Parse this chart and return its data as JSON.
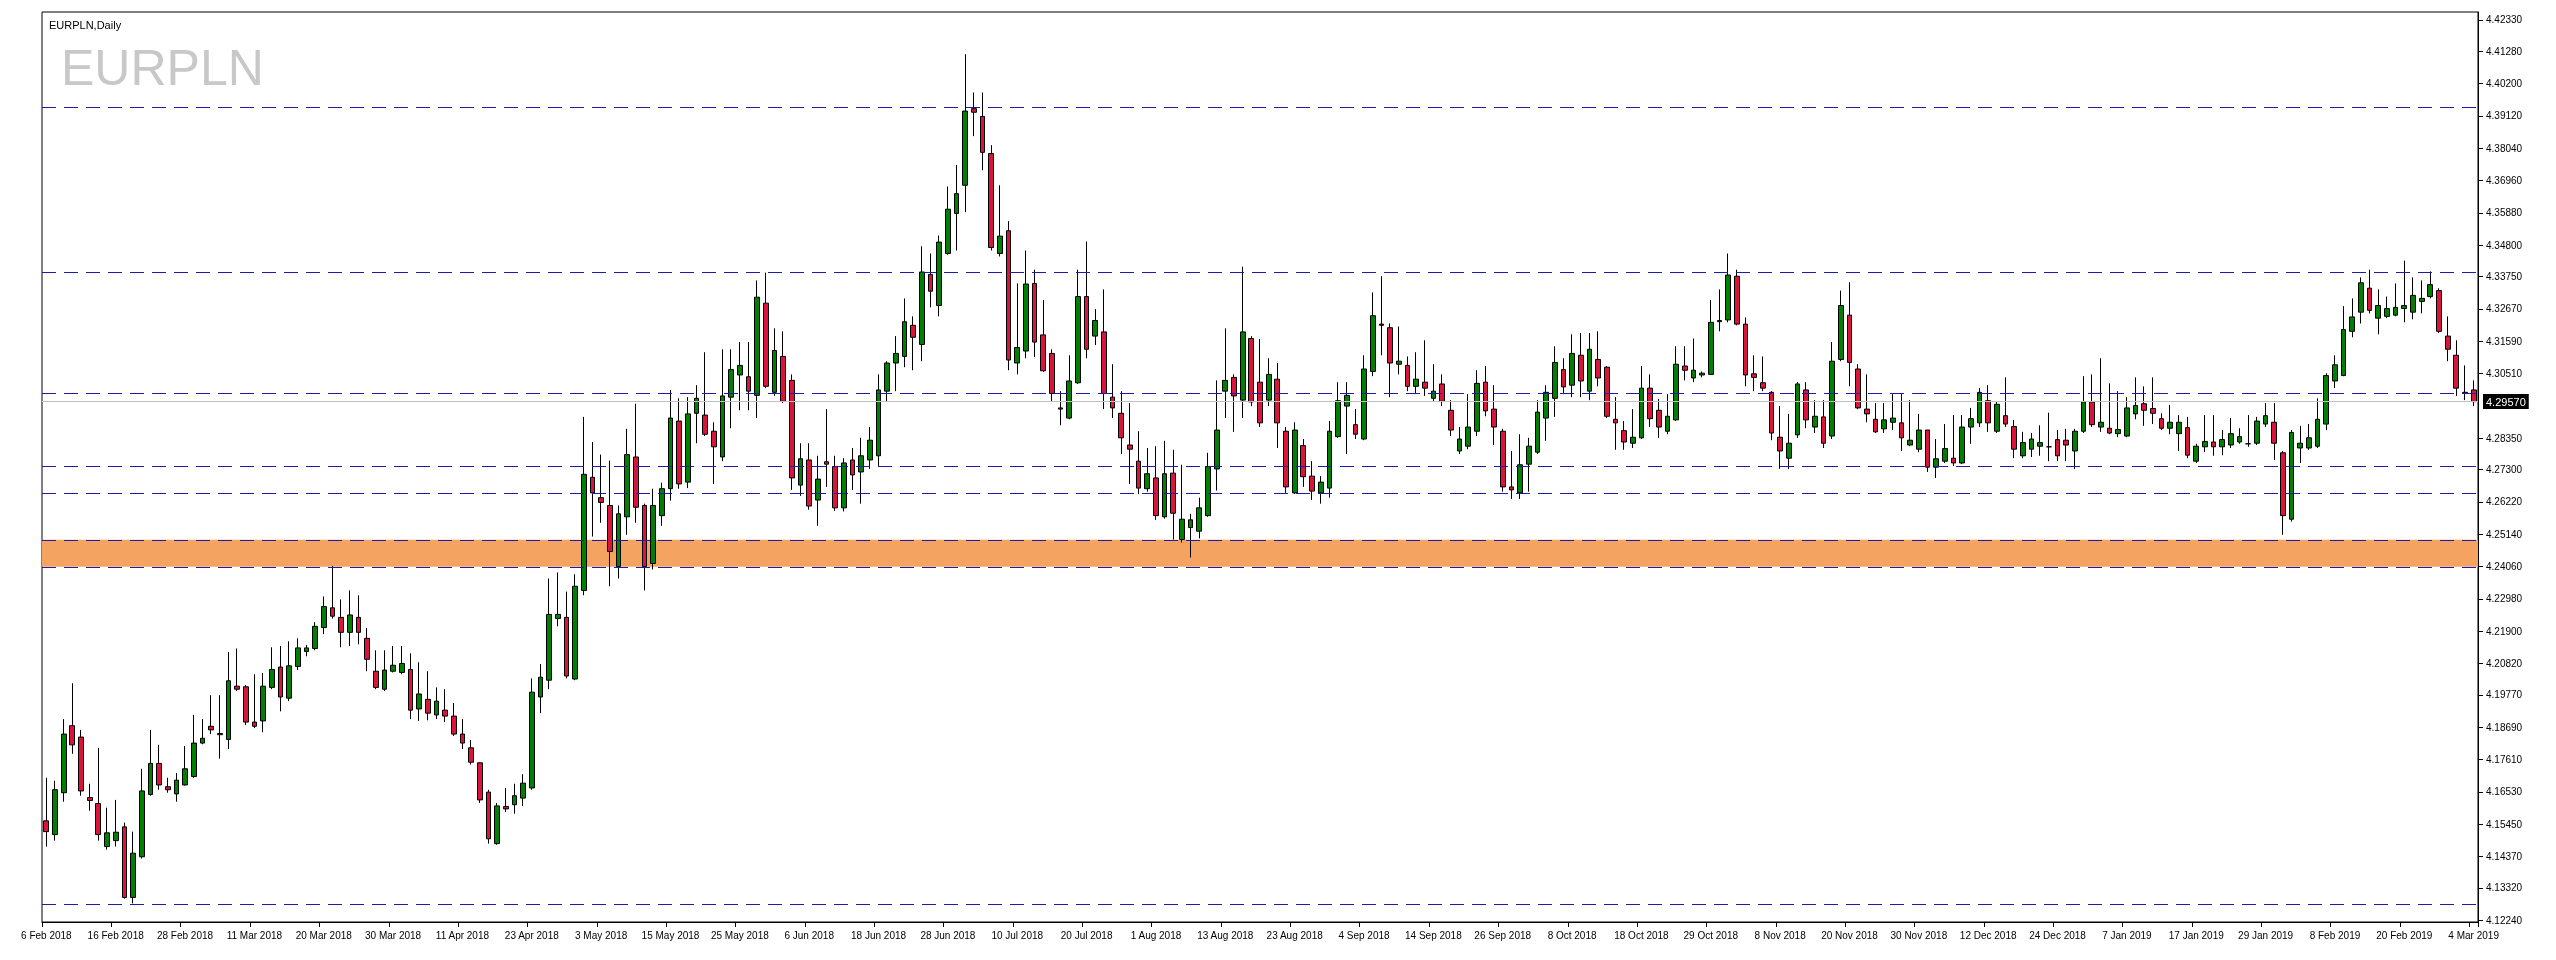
{
  "chart_data": {
    "type": "candlestick",
    "title": "EURPLN,Daily",
    "subtitle": "EURPLN",
    "categories": [
      "6 Feb 2018",
      null,
      null,
      null,
      null,
      null,
      null,
      null,
      "16 Feb 2018",
      null,
      null,
      null,
      null,
      null,
      null,
      null,
      "28 Feb 2018",
      null,
      null,
      null,
      null,
      null,
      null,
      null,
      "11 Mar 2018",
      null,
      null,
      null,
      null,
      null,
      null,
      null,
      "20 Mar 2018",
      null,
      null,
      null,
      null,
      null,
      null,
      null,
      "30 Mar 2018",
      null,
      null,
      null,
      null,
      null,
      null,
      null,
      "11 Apr 2018",
      null,
      null,
      null,
      null,
      null,
      null,
      null,
      "23 Apr 2018",
      null,
      null,
      null,
      null,
      null,
      null,
      null,
      "3 May 2018",
      null,
      null,
      null,
      null,
      null,
      null,
      null,
      "15 May 2018",
      null,
      null,
      null,
      null,
      null,
      null,
      null,
      "25 May 2018",
      null,
      null,
      null,
      null,
      null,
      null,
      null,
      "6 Jun 2018",
      null,
      null,
      null,
      null,
      null,
      null,
      null,
      "18 Jun 2018",
      null,
      null,
      null,
      null,
      null,
      null,
      null,
      "28 Jun 2018",
      null,
      null,
      null,
      null,
      null,
      null,
      null,
      "10 Jul 2018",
      null,
      null,
      null,
      null,
      null,
      null,
      null,
      "20 Jul 2018",
      null,
      null,
      null,
      null,
      null,
      null,
      null,
      "1 Aug 2018",
      null,
      null,
      null,
      null,
      null,
      null,
      null,
      "13 Aug 2018",
      null,
      null,
      null,
      null,
      null,
      null,
      null,
      "23 Aug 2018",
      null,
      null,
      null,
      null,
      null,
      null,
      null,
      "4 Sep 2018",
      null,
      null,
      null,
      null,
      null,
      null,
      null,
      "14 Sep 2018",
      null,
      null,
      null,
      null,
      null,
      null,
      null,
      "26 Sep 2018",
      null,
      null,
      null,
      null,
      null,
      null,
      null,
      "8 Oct 2018",
      null,
      null,
      null,
      null,
      null,
      null,
      null,
      "18 Oct 2018",
      null,
      null,
      null,
      null,
      null,
      null,
      null,
      "29 Oct 2018",
      null,
      null,
      null,
      null,
      null,
      null,
      null,
      "8 Nov 2018",
      null,
      null,
      null,
      null,
      null,
      null,
      null,
      "20 Nov 2018",
      null,
      null,
      null,
      null,
      null,
      null,
      null,
      "30 Nov 2018",
      null,
      null,
      null,
      null,
      null,
      null,
      null,
      "12 Dec 2018",
      null,
      null,
      null,
      null,
      null,
      null,
      null,
      "24 Dec 2018",
      null,
      null,
      null,
      null,
      null,
      null,
      null,
      "7 Jan 2019",
      null,
      null,
      null,
      null,
      null,
      null,
      null,
      "17 Jan 2019",
      null,
      null,
      null,
      null,
      null,
      null,
      null,
      "29 Jan 2019",
      null,
      null,
      null,
      null,
      null,
      null,
      null,
      "8 Feb 2019",
      null,
      null,
      null,
      null,
      null,
      null,
      null,
      "20 Feb 2019",
      null,
      null,
      null,
      null,
      null,
      null,
      null,
      "4 Mar 2019"
    ],
    "colors": [
      "#dc143c",
      "#008000",
      "#008000",
      "#dc143c",
      "#dc143c",
      "#dc143c",
      "#dc143c",
      "#008000",
      "#008000",
      "#dc143c",
      "#008000",
      "#008000",
      "#008000",
      "#dc143c",
      "#dc143c",
      "#008000",
      "#008000",
      "#008000",
      "#008000",
      "#dc143c",
      "#dc143c",
      "#008000",
      "#dc143c",
      "#dc143c",
      "#dc143c",
      "#008000",
      "#008000",
      "#dc143c",
      "#008000",
      "#008000",
      "#008000",
      "#008000",
      "#008000",
      "#dc143c",
      "#dc143c",
      "#008000",
      "#dc143c",
      "#dc143c",
      "#dc143c",
      "#008000",
      "#008000",
      "#008000",
      "#dc143c",
      "#008000",
      "#dc143c",
      "#008000",
      "#dc143c",
      "#dc143c",
      "#dc143c",
      "#dc143c",
      "#dc143c",
      "#dc143c",
      "#008000",
      "#dc143c",
      "#008000",
      "#008000",
      "#008000",
      "#008000",
      "#008000",
      "#008000",
      "#dc143c",
      "#008000",
      "#008000",
      "#dc143c",
      "#dc143c",
      "#dc143c",
      "#008000",
      "#008000",
      "#dc143c",
      "#dc143c",
      "#008000",
      "#008000",
      "#008000",
      "#dc143c",
      "#008000",
      "#008000",
      "#dc143c",
      "#dc143c",
      "#008000",
      "#008000",
      "#008000",
      "#dc143c",
      "#008000",
      "#dc143c",
      "#008000",
      "#dc143c",
      "#dc143c",
      "#008000",
      "#dc143c",
      "#008000",
      "#dc143c",
      "#dc143c",
      "#008000",
      "#dc143c",
      "#008000",
      "#008000",
      "#008000",
      "#008000",
      "#008000",
      "#008000",
      "#dc143c",
      "#008000",
      "#dc143c",
      "#008000",
      "#008000",
      "#008000",
      "#008000",
      "#dc143c",
      "#dc143c",
      "#dc143c",
      "#008000",
      "#dc143c",
      "#008000",
      "#008000",
      "#dc143c",
      "#dc143c",
      "#dc143c",
      "#dc143c",
      "#008000",
      "#008000",
      "#dc143c",
      "#008000",
      "#dc143c",
      "#dc143c",
      "#dc143c",
      "#dc143c",
      "#dc143c",
      "#008000",
      "#dc143c",
      "#008000",
      "#dc143c",
      "#008000",
      "#008000",
      "#008000",
      "#008000",
      "#008000",
      "#008000",
      "#dc143c",
      "#008000",
      "#dc143c",
      "#dc143c",
      "#008000",
      "#dc143c",
      "#dc143c",
      "#008000",
      "#dc143c",
      "#dc143c",
      "#008000",
      "#008000",
      "#008000",
      "#008000",
      "#dc143c",
      "#008000",
      "#008000",
      "#dc143c",
      "#dc143c",
      "#008000",
      "#dc143c",
      "#008000",
      "#dc143c",
      "#008000",
      "#dc143c",
      "#dc143c",
      "#008000",
      "#008000",
      "#008000",
      "#dc143c",
      "#dc143c",
      "#dc143c",
      "#dc143c",
      "#008000",
      "#008000",
      "#008000",
      "#008000",
      "#008000",
      "#dc143c",
      "#008000",
      "#dc143c",
      "#008000",
      "#dc143c",
      "#dc143c",
      "#dc143c",
      "#dc143c",
      "#008000",
      "#008000",
      "#dc143c",
      "#dc143c",
      "#008000",
      "#008000",
      "#dc143c",
      "#008000",
      "#008000",
      "#008000",
      "#008000",
      "#008000",
      "#dc143c",
      "#dc143c",
      "#dc143c",
      "#dc143c",
      "#dc143c",
      "#dc143c",
      "#008000",
      "#008000",
      "#dc143c",
      "#008000",
      "#dc143c",
      "#008000",
      "#008000",
      "#dc143c",
      "#dc143c",
      "#dc143c",
      "#dc143c",
      "#008000",
      "#008000",
      "#dc143c",
      "#008000",
      "#008000",
      "#dc143c",
      "#008000",
      "#008000",
      "#dc143c",
      "#008000",
      "#008000",
      "#008000",
      "#dc143c",
      "#008000",
      "#dc143c",
      "#dc143c",
      "#008000",
      "#008000",
      "#008000",
      "#000000",
      "#dc143c",
      "#dc143c",
      "#008000",
      "#008000",
      "#dc143c",
      "#008000",
      "#dc143c",
      "#008000",
      "#008000",
      "#008000",
      "#dc143c",
      "#dc143c",
      "#dc143c",
      "#008000",
      "#008000",
      "#dc143c",
      "#008000",
      "#008000",
      "#dc143c",
      "#008000",
      "#008000",
      "#008000",
      "#000000",
      "#008000",
      "#008000",
      "#dc143c",
      "#dc143c",
      "#008000",
      "#008000",
      "#008000",
      "#008000",
      "#008000",
      "#008000",
      "#008000",
      "#008000",
      "#008000",
      "#dc143c",
      "#008000",
      "#008000",
      "#008000",
      "#008000",
      "#008000",
      "#008000",
      "#008000",
      "#dc143c",
      "#dc143c",
      "#dc143c",
      "#dc143c",
      "#dc143c"
    ],
    "ohlc": [
      [
        4.1556,
        4.17,
        4.147,
        4.152
      ],
      [
        4.151,
        4.169,
        4.149,
        4.166
      ],
      [
        4.165,
        4.1896,
        4.162,
        4.1846
      ],
      [
        4.1874,
        4.2016,
        4.178,
        4.181
      ],
      [
        4.1836,
        4.186,
        4.164,
        4.1656
      ],
      [
        4.1634,
        4.168,
        4.159,
        4.1624
      ],
      [
        4.1614,
        4.18,
        4.149,
        4.151
      ],
      [
        4.147,
        4.16,
        4.146,
        4.1516
      ],
      [
        4.149,
        4.1626,
        4.147,
        4.1518
      ],
      [
        4.1536,
        4.155,
        4.1296,
        4.13
      ],
      [
        4.13,
        4.152,
        4.128,
        4.1448
      ],
      [
        4.1436,
        4.173,
        4.143,
        4.1656
      ],
      [
        4.1644,
        4.186,
        4.164,
        4.1748
      ],
      [
        4.1748,
        4.181,
        4.166,
        4.1676
      ],
      [
        4.167,
        4.17,
        4.165,
        4.166
      ],
      [
        4.1646,
        4.1716,
        4.162,
        4.1692
      ],
      [
        4.1676,
        4.1806,
        4.1674,
        4.173
      ],
      [
        4.1704,
        4.191,
        4.17,
        4.1816
      ],
      [
        4.1816,
        4.1896,
        4.1812,
        4.1832
      ],
      [
        4.1872,
        4.1976,
        4.1846,
        4.186
      ],
      [
        4.1848,
        4.1976,
        4.1764,
        4.1844
      ],
      [
        4.1828,
        4.212,
        4.1796,
        4.2024
      ],
      [
        4.2006,
        4.2132,
        4.199,
        4.1996
      ],
      [
        4.2004,
        4.201,
        4.1876,
        4.1886
      ],
      [
        4.1886,
        4.2046,
        4.1866,
        4.1872
      ],
      [
        4.189,
        4.205,
        4.1852,
        4.2006
      ],
      [
        4.2002,
        4.2136,
        4.1996,
        4.2062
      ],
      [
        4.207,
        4.214,
        4.1922,
        4.197
      ],
      [
        4.1966,
        4.2156,
        4.1956,
        4.2074
      ],
      [
        4.2072,
        4.2166,
        4.206,
        4.2134
      ],
      [
        4.2122,
        4.2144,
        4.2106,
        4.2134
      ],
      [
        4.2132,
        4.222,
        4.2126,
        4.2206
      ],
      [
        4.2202,
        4.2306,
        4.218,
        4.2272
      ],
      [
        4.2268,
        4.2408,
        4.2232,
        4.224
      ],
      [
        4.2236,
        4.2296,
        4.2136,
        4.2186
      ],
      [
        4.2186,
        4.2326,
        4.214,
        4.2244
      ],
      [
        4.2236,
        4.231,
        4.2146,
        4.2186
      ],
      [
        4.2166,
        4.22,
        4.2056,
        4.2096
      ],
      [
        4.2056,
        4.2126,
        4.1996,
        4.2002
      ],
      [
        4.1996,
        4.2126,
        4.199,
        4.206
      ],
      [
        4.2056,
        4.214,
        4.2052,
        4.2076
      ],
      [
        4.2052,
        4.214,
        4.2046,
        4.2082
      ],
      [
        4.2062,
        4.2116,
        4.1896,
        4.1926
      ],
      [
        4.193,
        4.2086,
        4.189,
        4.198
      ],
      [
        4.1962,
        4.2056,
        4.1892,
        4.1916
      ],
      [
        4.191,
        4.2002,
        4.1896,
        4.1956
      ],
      [
        4.1926,
        4.1996,
        4.1886,
        4.1906
      ],
      [
        4.1906,
        4.195,
        4.184,
        4.1846
      ],
      [
        4.1846,
        4.1896,
        4.1796,
        4.1816
      ],
      [
        4.18,
        4.1826,
        4.1744,
        4.1752
      ],
      [
        4.175,
        4.1752,
        4.1616,
        4.1626
      ],
      [
        4.1652,
        4.166,
        4.148,
        4.1496
      ],
      [
        4.148,
        4.1616,
        4.1476,
        4.1606
      ],
      [
        4.1604,
        4.1666,
        4.1586,
        4.1596
      ],
      [
        4.161,
        4.168,
        4.158,
        4.164
      ],
      [
        4.1632,
        4.1712,
        4.1606,
        4.1682
      ],
      [
        4.1666,
        4.2032,
        4.166,
        4.1986
      ],
      [
        4.197,
        4.208,
        4.1916,
        4.2036
      ],
      [
        4.2026,
        4.2366,
        4.1996,
        4.2246
      ],
      [
        4.2232,
        4.2386,
        4.2206,
        4.2246
      ],
      [
        4.2236,
        4.2322,
        4.2032,
        4.204
      ],
      [
        4.203,
        4.238,
        4.2026,
        4.234
      ],
      [
        4.2326,
        4.2906,
        4.231,
        4.2714
      ],
      [
        4.2704,
        4.2822,
        4.2506,
        4.2652
      ],
      [
        4.2636,
        4.278,
        4.2552,
        4.262
      ],
      [
        4.261,
        4.276,
        4.234,
        4.2456
      ],
      [
        4.2406,
        4.261,
        4.2366,
        4.2582
      ],
      [
        4.2572,
        4.2866,
        4.2512,
        4.278
      ],
      [
        4.2772,
        4.295,
        4.2552,
        4.2604
      ],
      [
        4.261,
        4.2616,
        4.2326,
        4.2406
      ],
      [
        4.2416,
        4.2666,
        4.2396,
        4.261
      ],
      [
        4.2576,
        4.2686,
        4.2542,
        4.2666
      ],
      [
        4.2666,
        4.2996,
        4.2626,
        4.2902
      ],
      [
        4.2892,
        4.2968,
        4.2666,
        4.2682
      ],
      [
        4.2688,
        4.2972,
        4.2668,
        4.2916
      ],
      [
        4.2918,
        4.3012,
        4.2818,
        4.2968
      ],
      [
        4.2912,
        4.3122,
        4.2842,
        4.2848
      ],
      [
        4.2858,
        4.2888,
        4.2682,
        4.2806
      ],
      [
        4.2772,
        4.3132,
        4.2758,
        4.2976
      ],
      [
        4.2972,
        4.3132,
        4.2868,
        4.3064
      ],
      [
        4.3046,
        4.3156,
        4.2928,
        4.3078
      ],
      [
        4.304,
        4.3156,
        4.2928,
        4.2992
      ],
      [
        4.2978,
        4.3362,
        4.2902,
        4.3306
      ],
      [
        4.3286,
        4.3388,
        4.3002,
        4.3008
      ],
      [
        4.2988,
        4.3202,
        4.2976,
        4.3128
      ],
      [
        4.3108,
        4.3192,
        4.2952,
        4.2958
      ],
      [
        4.3028,
        4.3048,
        4.2662,
        4.2702
      ],
      [
        4.2678,
        4.2818,
        4.2642,
        4.2766
      ],
      [
        4.2762,
        4.2818,
        4.2596,
        4.2608
      ],
      [
        4.2628,
        4.2776,
        4.2542,
        4.2698
      ],
      [
        4.2756,
        4.2932,
        4.2672,
        4.2748
      ],
      [
        4.274,
        4.2776,
        4.2592,
        4.2602
      ],
      [
        4.2602,
        4.2768,
        4.259,
        4.2752
      ],
      [
        4.2762,
        4.2802,
        4.2662,
        4.2712
      ],
      [
        4.2722,
        4.2836,
        4.2616,
        4.2776
      ],
      [
        4.2762,
        4.2872,
        4.2732,
        4.2828
      ],
      [
        4.2776,
        4.3048,
        4.2742,
        4.2996
      ],
      [
        4.2992,
        4.3092,
        4.2958,
        4.3086
      ],
      [
        4.3086,
        4.3176,
        4.2992,
        4.3118
      ],
      [
        4.3108,
        4.3302,
        4.3072,
        4.3224
      ],
      [
        4.3212,
        4.3242,
        4.3062,
        4.3172
      ],
      [
        4.3148,
        4.3476,
        4.3092,
        4.339
      ],
      [
        4.3382,
        4.3452,
        4.3272,
        4.3326
      ],
      [
        4.3278,
        4.3512,
        4.3242,
        4.349
      ],
      [
        4.3452,
        4.3676,
        4.3448,
        4.36
      ],
      [
        4.3586,
        4.3748,
        4.3462,
        4.3652
      ],
      [
        4.368,
        4.4118,
        4.359,
        4.3928
      ],
      [
        4.3936,
        4.399,
        4.3844,
        4.3924
      ],
      [
        4.391,
        4.399,
        4.373,
        4.379
      ],
      [
        4.3786,
        4.3814,
        4.3462,
        4.3472
      ],
      [
        4.3452,
        4.368,
        4.3442,
        4.351
      ],
      [
        4.3528,
        4.356,
        4.3062,
        4.3096
      ],
      [
        4.3086,
        4.3352,
        4.3048,
        4.3138
      ],
      [
        4.3126,
        4.3462,
        4.3102,
        4.335
      ],
      [
        4.3352,
        4.3398,
        4.3106,
        4.3156
      ],
      [
        4.318,
        4.3296,
        4.3056,
        4.306
      ],
      [
        4.3118,
        4.3132,
        4.2958,
        4.2984
      ],
      [
        4.2936,
        4.2992,
        4.2878,
        4.2932
      ],
      [
        4.2902,
        4.3112,
        4.2898,
        4.3026
      ],
      [
        4.302,
        4.3398,
        4.3016,
        4.3308
      ],
      [
        4.3308,
        4.3492,
        4.3102,
        4.3132
      ],
      [
        4.3176,
        4.3266,
        4.3146,
        4.3228
      ],
      [
        4.319,
        4.3332,
        4.2932,
        4.2984
      ],
      [
        4.2972,
        4.3082,
        4.2902,
        4.2936
      ],
      [
        4.2918,
        4.2992,
        4.2782,
        4.2836
      ],
      [
        4.2812,
        4.2952,
        4.2682,
        4.2798
      ],
      [
        4.2758,
        4.2858,
        4.2648,
        4.2668
      ],
      [
        4.2666,
        4.2802,
        4.2656,
        4.2716
      ],
      [
        4.2702,
        4.2808,
        4.2562,
        4.2576
      ],
      [
        4.2572,
        4.2826,
        4.2566,
        4.2716
      ],
      [
        4.2718,
        4.2796,
        4.2496,
        4.2584
      ],
      [
        4.2496,
        4.2746,
        4.2486,
        4.2564
      ],
      [
        4.2536,
        4.2582,
        4.2436,
        4.2562
      ],
      [
        4.2524,
        4.2636,
        4.25,
        4.2602
      ],
      [
        4.2576,
        4.2786,
        4.2572,
        4.274
      ],
      [
        4.2732,
        4.3028,
        4.266,
        4.2862
      ],
      [
        4.2992,
        4.3202,
        4.2902,
        4.3028
      ],
      [
        4.3038,
        4.3048,
        4.2856,
        4.2976
      ],
      [
        4.2962,
        4.3408,
        4.2902,
        4.319
      ],
      [
        4.3168,
        4.3176,
        4.2942,
        4.2956
      ],
      [
        4.3022,
        4.3166,
        4.2872,
        4.2886
      ],
      [
        4.2962,
        4.3102,
        4.2942,
        4.3048
      ],
      [
        4.3032,
        4.3086,
        4.2802,
        4.2886
      ],
      [
        4.2858,
        4.2872,
        4.2652,
        4.2672
      ],
      [
        4.2652,
        4.2888,
        4.2648,
        4.2862
      ],
      [
        4.281,
        4.2832,
        4.2672,
        4.2706
      ],
      [
        4.2708,
        4.2758,
        4.2628,
        4.2658
      ],
      [
        4.2652,
        4.2708,
        4.2616,
        4.2688
      ],
      [
        4.2668,
        4.2892,
        4.2636,
        4.2858
      ],
      [
        4.284,
        4.3022,
        4.2836,
        4.296
      ],
      [
        4.2942,
        4.3022,
        4.2782,
        4.2978
      ],
      [
        4.288,
        4.2932,
        4.2832,
        4.2848
      ],
      [
        4.2832,
        4.3112,
        4.2828,
        4.3066
      ],
      [
        4.3058,
        4.3322,
        4.3042,
        4.3244
      ],
      [
        4.3216,
        4.3376,
        4.3112,
        4.3212
      ],
      [
        4.3204,
        4.3218,
        4.2972,
        4.3086
      ],
      [
        4.3082,
        4.3208,
        4.3048,
        4.3092
      ],
      [
        4.3078,
        4.3108,
        4.2992,
        4.3008
      ],
      [
        4.3008,
        4.3122,
        4.2982,
        4.3032
      ],
      [
        4.3022,
        4.3162,
        4.2976,
        4.3002
      ],
      [
        4.2968,
        4.3082,
        4.2956,
        4.2992
      ],
      [
        4.3016,
        4.3048,
        4.2942,
        4.2958
      ],
      [
        4.2928,
        4.2962,
        4.2842,
        4.2862
      ],
      [
        4.2792,
        4.2872,
        4.2782,
        4.2832
      ],
      [
        4.2808,
        4.2982,
        4.2798,
        4.2872
      ],
      [
        4.2858,
        4.3062,
        4.2842,
        4.3018
      ],
      [
        4.3022,
        4.3076,
        4.2908,
        4.2926
      ],
      [
        4.2932,
        4.3012,
        4.2812,
        4.2872
      ],
      [
        4.2858,
        4.2866,
        4.2656,
        4.2672
      ],
      [
        4.2672,
        4.2792,
        4.2632,
        4.2662
      ],
      [
        4.2652,
        4.2848,
        4.2632,
        4.2746
      ],
      [
        4.2748,
        4.2836,
        4.2656,
        4.2808
      ],
      [
        4.2788,
        4.2962,
        4.2782,
        4.2922
      ],
      [
        4.2902,
        4.3012,
        4.2826,
        4.2988
      ],
      [
        4.2968,
        4.3142,
        4.2906,
        4.3088
      ],
      [
        4.3064,
        4.3102,
        4.2982,
        4.3006
      ],
      [
        4.3012,
        4.3182,
        4.2972,
        4.3118
      ],
      [
        4.3112,
        4.3186,
        4.2972,
        4.3026
      ],
      [
        4.2992,
        4.3186,
        4.2962,
        4.3132
      ],
      [
        4.3098,
        4.3192,
        4.3008,
        4.3036
      ],
      [
        4.3072,
        4.3076,
        4.2902,
        4.2908
      ],
      [
        4.2898,
        4.2972,
        4.2796,
        4.2886
      ],
      [
        4.286,
        4.2892,
        4.2796,
        4.2822
      ],
      [
        4.2818,
        4.2932,
        4.2802,
        4.2838
      ],
      [
        4.2836,
        4.3076,
        4.2832,
        4.3002
      ],
      [
        4.3002,
        4.3048,
        4.2872,
        4.29
      ],
      [
        4.2928,
        4.2966,
        4.2836,
        4.2872
      ],
      [
        4.2858,
        4.2982,
        4.2848,
        4.2908
      ],
      [
        4.2896,
        4.3142,
        4.2892,
        4.3082
      ],
      [
        4.3076,
        4.3142,
        4.3028,
        4.3062
      ],
      [
        4.3036,
        4.3168,
        4.3022,
        4.3062
      ],
      [
        4.3046,
        4.3058,
        4.3038,
        4.3052
      ],
      [
        4.3048,
        4.3296,
        4.3046,
        4.3222
      ],
      [
        4.3224,
        4.3332,
        4.3192,
        4.3228
      ],
      [
        4.323,
        4.3452,
        4.3222,
        4.338
      ],
      [
        4.3376,
        4.3398,
        4.3212,
        4.3216
      ],
      [
        4.3216,
        4.3238,
        4.3008,
        4.3046
      ],
      [
        4.305,
        4.3112,
        4.2992,
        4.3038
      ],
      [
        4.302,
        4.3108,
        4.2992,
        4.3002
      ],
      [
        4.2988,
        4.2992,
        4.2828,
        4.2852
      ],
      [
        4.2838,
        4.2942,
        4.2732,
        4.2792
      ],
      [
        4.2768,
        4.2916,
        4.2732,
        4.2818
      ],
      [
        4.2846,
        4.3022,
        4.2836,
        4.3016
      ],
      [
        4.2996,
        4.3022,
        4.2868,
        4.2896
      ],
      [
        4.2872,
        4.2962,
        4.2852,
        4.2908
      ],
      [
        4.2906,
        4.2962,
        4.2802,
        4.2818
      ],
      [
        4.2842,
        4.3156,
        4.2832,
        4.3092
      ],
      [
        4.3098,
        4.3328,
        4.3092,
        4.3278
      ],
      [
        4.3246,
        4.3356,
        4.3008,
        4.3088
      ],
      [
        4.3066,
        4.3082,
        4.2932,
        4.2936
      ],
      [
        4.2932,
        4.3048,
        4.2888,
        4.2916
      ],
      [
        4.2898,
        4.2952,
        4.2852,
        4.2856
      ],
      [
        4.2866,
        4.2952,
        4.2852,
        4.2896
      ],
      [
        4.2888,
        4.2982,
        4.2862,
        4.2902
      ],
      [
        4.2886,
        4.2982,
        4.2792,
        4.2836
      ],
      [
        4.2812,
        4.2962,
        4.2808,
        4.2828
      ],
      [
        4.2798,
        4.2916,
        4.2788,
        4.2862
      ],
      [
        4.2862,
        4.2862,
        4.2722,
        4.2738
      ],
      [
        4.2738,
        4.2832,
        4.2702,
        4.2766
      ],
      [
        4.2758,
        4.2882,
        4.2752,
        4.28
      ],
      [
        4.2768,
        4.2912,
        4.2742,
        4.2752
      ],
      [
        4.2752,
        4.2912,
        4.2748,
        4.2872
      ],
      [
        4.2872,
        4.2936,
        4.2816,
        4.29
      ],
      [
        4.2886,
        4.3002,
        4.2872,
        4.2988
      ],
      [
        4.296,
        4.3012,
        4.2856,
        4.2886
      ],
      [
        4.2858,
        4.2956,
        4.2852,
        4.2948
      ],
      [
        4.291,
        4.3038,
        4.2872,
        4.2882
      ],
      [
        4.2874,
        4.2896,
        4.2768,
        4.2798
      ],
      [
        4.2776,
        4.2856,
        4.2768,
        4.282
      ],
      [
        4.2798,
        4.2852,
        4.2772,
        4.2832
      ],
      [
        4.2808,
        4.2878,
        4.2776,
        4.282
      ],
      [
        4.2806,
        4.292,
        4.2758,
        4.2806
      ],
      [
        4.283,
        4.2862,
        4.2758,
        4.2776
      ],
      [
        4.2828,
        4.2866,
        4.2758,
        4.2812
      ],
      [
        4.2792,
        4.2866,
        4.2732,
        4.2858
      ],
      [
        4.2858,
        4.3042,
        4.2852,
        4.2956
      ],
      [
        4.2956,
        4.3048,
        4.2872,
        4.288
      ],
      [
        4.2872,
        4.3102,
        4.2856,
        4.2888
      ],
      [
        4.2868,
        4.3018,
        4.2848,
        4.2852
      ],
      [
        4.285,
        4.2992,
        4.2838,
        4.2864
      ],
      [
        4.2842,
        4.2972,
        4.2838,
        4.2936
      ],
      [
        4.2916,
        4.3038,
        4.2898,
        4.2944
      ],
      [
        4.295,
        4.3008,
        4.2876,
        4.2928
      ],
      [
        4.2934,
        4.3038,
        4.2882,
        4.2918
      ],
      [
        4.29,
        4.2918,
        4.2862,
        4.2868
      ],
      [
        4.2868,
        4.2946,
        4.2848,
        4.2888
      ],
      [
        4.285,
        4.2912,
        4.2792,
        4.2888
      ],
      [
        4.287,
        4.2906,
        4.2768,
        4.2778
      ],
      [
        4.2758,
        4.2816,
        4.2752,
        4.2808
      ],
      [
        4.2806,
        4.2912,
        4.2788,
        4.2824
      ],
      [
        4.2822,
        4.2912,
        4.2776,
        4.2806
      ],
      [
        4.2806,
        4.2862,
        4.2778,
        4.283
      ],
      [
        4.2812,
        4.2902,
        4.2802,
        4.285
      ],
      [
        4.2822,
        4.2868,
        4.2816,
        4.284
      ],
      [
        4.2816,
        4.2912,
        4.2806,
        4.2816
      ],
      [
        4.2818,
        4.2906,
        4.2812,
        4.2892
      ],
      [
        4.2882,
        4.2952,
        4.2872,
        4.291
      ],
      [
        4.2888,
        4.2952,
        4.2762,
        4.2818
      ],
      [
        4.2786,
        4.2792,
        4.2512,
        4.2576
      ],
      [
        4.2564,
        4.2862,
        4.2556,
        4.2854
      ],
      [
        4.2802,
        4.2876,
        4.2752,
        4.2818
      ],
      [
        4.2802,
        4.2882,
        4.2796,
        4.2836
      ],
      [
        4.2808,
        4.2968,
        4.2802,
        4.2898
      ],
      [
        4.2882,
        4.3052,
        4.2862,
        4.3044
      ],
      [
        4.3026,
        4.3112,
        4.3002,
        4.308
      ],
      [
        4.3044,
        4.3276,
        4.3042,
        4.3198
      ],
      [
        4.3192,
        4.3302,
        4.3172,
        4.324
      ],
      [
        4.3256,
        4.3372,
        4.3218,
        4.3354
      ],
      [
        4.3336,
        4.3398,
        4.3252,
        4.3262
      ],
      [
        4.3236,
        4.3332,
        4.3182,
        4.3278
      ],
      [
        4.3242,
        4.3308,
        4.3236,
        4.3268
      ],
      [
        4.3246,
        4.3352,
        4.3242,
        4.3272
      ],
      [
        4.3268,
        4.3428,
        4.3222,
        4.3278
      ],
      [
        4.3256,
        4.3372,
        4.3232,
        4.3312
      ],
      [
        4.3292,
        4.3362,
        4.3252,
        4.3302
      ],
      [
        4.3308,
        4.3392,
        4.3302,
        4.3348
      ],
      [
        4.3328,
        4.3336,
        4.3186,
        4.3192
      ],
      [
        4.3176,
        4.3242,
        4.3092,
        4.3132
      ],
      [
        4.3112,
        4.3162,
        4.2976,
        4.3002
      ],
      [
        4.2988,
        4.3078,
        4.2962,
        4.2984
      ],
      [
        4.2996,
        4.3028,
        4.2942,
        4.2957
      ]
    ],
    "ylim": [
      4.1218,
      4.4259
    ],
    "yticks": [
      {
        "value": 4.1224,
        "label": "4.12240"
      },
      {
        "value": 4.1332,
        "label": "4.13320"
      },
      {
        "value": 4.1437,
        "label": "4.14370"
      },
      {
        "value": 4.1545,
        "label": "4.15450"
      },
      {
        "value": 4.1653,
        "label": "4.16530"
      },
      {
        "value": 4.1761,
        "label": "4.17610"
      },
      {
        "value": 4.1869,
        "label": "4.18690"
      },
      {
        "value": 4.1977,
        "label": "4.19770"
      },
      {
        "value": 4.2082,
        "label": "4.20820"
      },
      {
        "value": 4.219,
        "label": "4.21900"
      },
      {
        "value": 4.2298,
        "label": "4.22980"
      },
      {
        "value": 4.2406,
        "label": "4.24060"
      },
      {
        "value": 4.2514,
        "label": "4.25140"
      },
      {
        "value": 4.2622,
        "label": "4.26220"
      },
      {
        "value": 4.273,
        "label": "4.27300"
      },
      {
        "value": 4.2835,
        "label": "4.28350"
      },
      {
        "value": 4.3051,
        "label": "4.30510"
      },
      {
        "value": 4.3159,
        "label": "4.31590"
      },
      {
        "value": 4.3267,
        "label": "4.32670"
      },
      {
        "value": 4.3375,
        "label": "4.33750"
      },
      {
        "value": 4.348,
        "label": "4.34800"
      },
      {
        "value": 4.3588,
        "label": "4.35880"
      },
      {
        "value": 4.3696,
        "label": "4.36960"
      },
      {
        "value": 4.3804,
        "label": "4.38040"
      },
      {
        "value": 4.3912,
        "label": "4.39120"
      },
      {
        "value": 4.402,
        "label": "4.40200"
      },
      {
        "value": 4.4128,
        "label": "4.41280"
      },
      {
        "value": 4.4233,
        "label": "4.42330"
      }
    ],
    "ref_lines": [
      {
        "axis": "y",
        "value": 4.394,
        "color": "#1c1ca8",
        "line_style": "dashed"
      },
      {
        "axis": "y",
        "value": 4.3388,
        "color": "#1c1ca8",
        "line_style": "dashed"
      },
      {
        "axis": "y",
        "value": 4.2985,
        "color": "#1c1ca8",
        "line_style": "dashed"
      },
      {
        "axis": "y",
        "value": 4.2742,
        "color": "#1c1ca8",
        "line_style": "dashed"
      },
      {
        "axis": "y",
        "value": 4.265,
        "color": "#1c1ca8",
        "line_style": "dashed"
      },
      {
        "axis": "y",
        "value": 4.2495,
        "color": "#1c1ca8",
        "line_style": "dashed"
      },
      {
        "axis": "y",
        "value": 4.2405,
        "color": "#1c1ca8",
        "line_style": "dashed"
      },
      {
        "axis": "y",
        "value": 4.1277,
        "color": "#1c1ca8",
        "line_style": "dashed"
      },
      {
        "axis": "y",
        "value": 4.2957,
        "color": "#c0c0c0",
        "line_style": "solid",
        "label": "4.29570"
      }
    ],
    "bands": [
      {
        "axis": "y",
        "from": 4.2405,
        "to": 4.2495,
        "color": "#f4a460"
      }
    ]
  }
}
